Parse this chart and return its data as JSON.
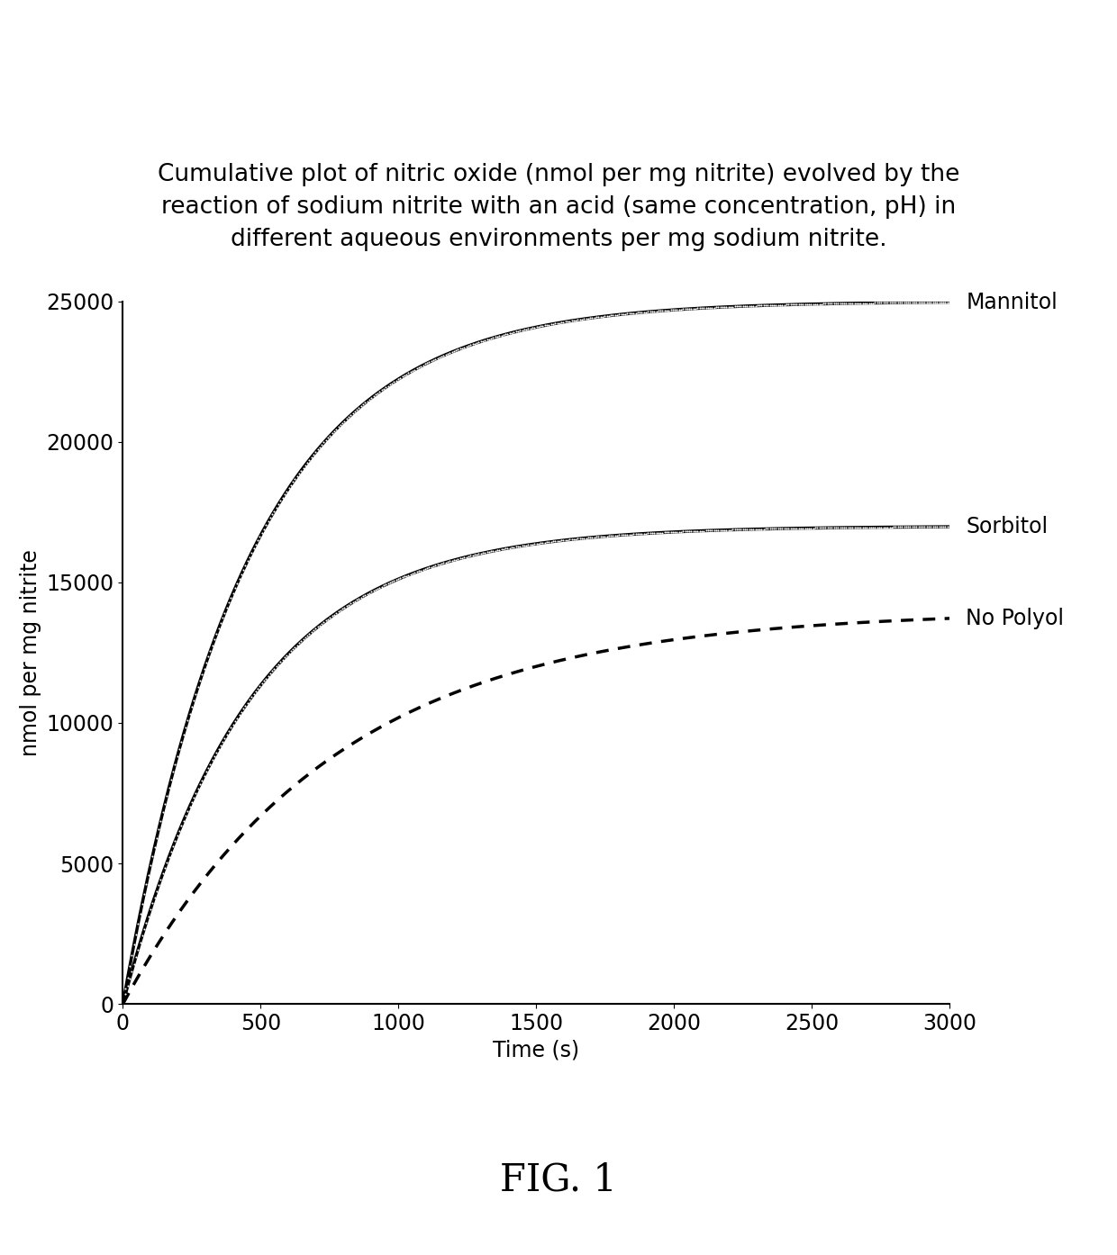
{
  "title_line1": "Cumulative plot of nitric oxide (nmol per mg nitrite) evolved by the",
  "title_line2": "reaction of sodium nitrite with an acid (same concentration, pH) in",
  "title_line3": "different aqueous environments per mg sodium nitrite.",
  "xlabel": "Time (s)",
  "ylabel": "nmol per mg nitrite",
  "xlim": [
    0,
    3000
  ],
  "ylim": [
    0,
    25000
  ],
  "xticks": [
    0,
    500,
    1000,
    1500,
    2000,
    2500,
    3000
  ],
  "yticks": [
    0,
    5000,
    10000,
    15000,
    20000,
    25000
  ],
  "fig_label": "FIG. 1",
  "mannitol_a": 25000,
  "mannitol_b": 0.0022,
  "sorbitol_a": 17000,
  "sorbitol_b": 0.0022,
  "nopolyol_a": 14000,
  "nopolyol_b": 0.0013,
  "background_color": "#ffffff",
  "title_fontsize": 19,
  "label_fontsize": 17,
  "tick_fontsize": 17,
  "annotation_fontsize": 17,
  "fig_label_fontsize": 30,
  "linewidth": 2.5,
  "line_color": "#000000"
}
